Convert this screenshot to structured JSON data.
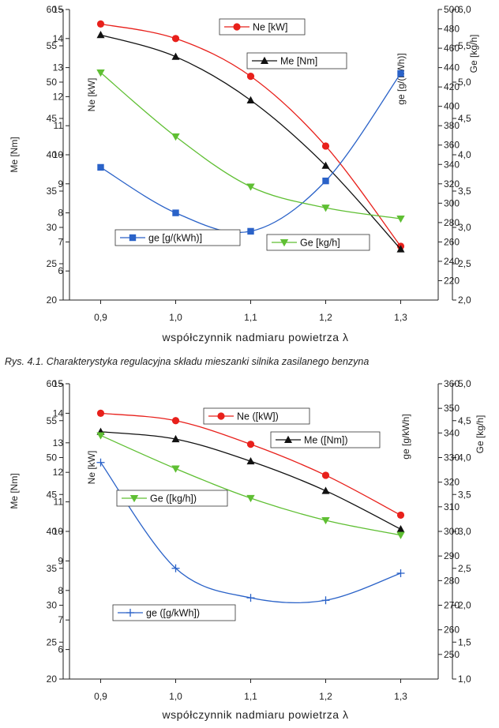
{
  "caption": "Rys. 4.1. Charakterystyka  regulacyjna składu mieszanki silnika zasilanego benzyna",
  "chart_data": [
    {
      "type": "line",
      "id": "top",
      "xlabel": "współczynnik nadmiaru powietrza  λ",
      "x": [
        0.9,
        1.0,
        1.1,
        1.2,
        1.3
      ],
      "x_tick_labels": [
        "0,9",
        "1,0",
        "1,1",
        "1,2",
        "1,3"
      ],
      "xlim": [
        0.85,
        1.35
      ],
      "axes": [
        {
          "key": "me",
          "label": "Me [Nm]",
          "ylim": [
            20,
            60
          ],
          "ticks": [
            20,
            25,
            30,
            35,
            40,
            45,
            50,
            55,
            60
          ],
          "tick_labels": [
            "20",
            "25",
            "30",
            "35",
            "40",
            "45",
            "50",
            "55",
            "60"
          ],
          "side": "left"
        },
        {
          "key": "ne",
          "label": "Ne [kW]",
          "ylim": [
            5,
            15
          ],
          "ticks": [
            6,
            7,
            8,
            9,
            10,
            11,
            12,
            13,
            14,
            15
          ],
          "tick_labels": [
            "6",
            "7",
            "8",
            "9",
            "10",
            "11",
            "12",
            "13",
            "14",
            "15"
          ],
          "side": "left-inner"
        },
        {
          "key": "ge",
          "label": "ge [g/(kWh)]",
          "ylim": [
            200,
            500
          ],
          "ticks": [
            220,
            240,
            260,
            280,
            300,
            320,
            340,
            360,
            380,
            400,
            420,
            440,
            460,
            480,
            500
          ],
          "tick_labels": [
            "220",
            "240",
            "260",
            "280",
            "300",
            "320",
            "340",
            "360",
            "380",
            "400",
            "420",
            "440",
            "460",
            "480",
            "500"
          ],
          "side": "right"
        },
        {
          "key": "Ge",
          "label": "Ge [kg/h]",
          "ylim": [
            2.0,
            6.0
          ],
          "ticks": [
            2.0,
            2.5,
            3.0,
            3.5,
            4.0,
            4.5,
            5.0,
            5.5,
            6.0
          ],
          "tick_labels": [
            "2,0",
            "2,5",
            "3,0",
            "3,5",
            "4,0",
            "4,5",
            "5,0",
            "5,5",
            "6,0"
          ],
          "side": "right-outer"
        }
      ],
      "series": [
        {
          "name": "Ne [kW]",
          "axis": "ne",
          "color": "#e8201b",
          "marker": "circle",
          "values": [
            14.5,
            14.0,
            12.7,
            10.3,
            6.85
          ]
        },
        {
          "name": "Me [Nm]",
          "axis": "me",
          "color": "#111111",
          "marker": "triangle-up",
          "values": [
            56.5,
            53.5,
            47.5,
            38.5,
            27.0
          ]
        },
        {
          "name": "ge [g/(kWh)]",
          "axis": "ge",
          "color": "#2a62c8",
          "marker": "square",
          "values": [
            337,
            290,
            271,
            323,
            434
          ]
        },
        {
          "name": "Ge [kg/h]",
          "axis": "Ge",
          "color": "#5fbf33",
          "marker": "triangle-down",
          "values": [
            5.13,
            4.25,
            3.56,
            3.27,
            3.12
          ]
        }
      ],
      "legend": [
        {
          "label": "Ne [kW]",
          "series": 0
        },
        {
          "label": "Me [Nm]",
          "series": 1
        },
        {
          "label": "ge [g/(kWh)]",
          "series": 2
        },
        {
          "label": "Ge [kg/h]",
          "series": 3
        }
      ]
    },
    {
      "type": "line",
      "id": "bottom",
      "xlabel": "współczynnik nadmiaru powietrza  λ",
      "x": [
        0.9,
        1.0,
        1.1,
        1.2,
        1.3
      ],
      "x_tick_labels": [
        "0,9",
        "1,0",
        "1,1",
        "1,2",
        "1,3"
      ],
      "xlim": [
        0.85,
        1.35
      ],
      "axes": [
        {
          "key": "me",
          "label": "Me [Nm]",
          "ylim": [
            20,
            60
          ],
          "ticks": [
            20,
            25,
            30,
            35,
            40,
            45,
            50,
            55,
            60
          ],
          "tick_labels": [
            "20",
            "25",
            "30",
            "35",
            "40",
            "45",
            "50",
            "55",
            "60"
          ],
          "side": "left"
        },
        {
          "key": "ne",
          "label": "Ne [kW]",
          "ylim": [
            5,
            15
          ],
          "ticks": [
            6,
            7,
            8,
            9,
            10,
            11,
            12,
            13,
            14,
            15
          ],
          "tick_labels": [
            "6",
            "7",
            "8",
            "9",
            "10",
            "11",
            "12",
            "13",
            "14",
            "15"
          ],
          "side": "left-inner"
        },
        {
          "key": "ge",
          "label": "ge [g/kWh]",
          "ylim": [
            240,
            360
          ],
          "ticks": [
            250,
            260,
            270,
            280,
            290,
            300,
            310,
            320,
            330,
            340,
            350,
            360
          ],
          "tick_labels": [
            "250",
            "260",
            "270",
            "280",
            "290",
            "300",
            "310",
            "320",
            "330",
            "340",
            "350",
            "360"
          ],
          "side": "right"
        },
        {
          "key": "Ge",
          "label": "Ge [kg/h]",
          "ylim": [
            1.0,
            5.0
          ],
          "ticks": [
            1.0,
            1.5,
            2.0,
            2.5,
            3.0,
            3.5,
            4.0,
            4.5,
            5.0
          ],
          "tick_labels": [
            "1,0",
            "1,5",
            "2,0",
            "2,5",
            "3,0",
            "3,5",
            "4,0",
            "4,5",
            "5,0"
          ],
          "side": "right-outer"
        }
      ],
      "series": [
        {
          "name": "Ne ([kW])",
          "axis": "ne",
          "color": "#e8201b",
          "marker": "circle",
          "values": [
            14.0,
            13.75,
            12.95,
            11.9,
            10.55
          ]
        },
        {
          "name": "Me ([Nm])",
          "axis": "me",
          "color": "#111111",
          "marker": "triangle-up",
          "values": [
            53.5,
            52.5,
            49.5,
            45.5,
            40.3
          ]
        },
        {
          "name": "Ge ([kg/h])",
          "axis": "Ge",
          "color": "#5fbf33",
          "marker": "triangle-down",
          "values": [
            4.3,
            3.85,
            3.45,
            3.15,
            2.95
          ]
        },
        {
          "name": "ge ([g/kWh])",
          "axis": "ge",
          "color": "#2a62c8",
          "marker": "plus",
          "values": [
            328,
            285,
            273,
            272,
            283
          ]
        }
      ],
      "legend": [
        {
          "label": "Ne ([kW])",
          "series": 0
        },
        {
          "label": "Me ([Nm])",
          "series": 1
        },
        {
          "label": "Ge ([kg/h])",
          "series": 2
        },
        {
          "label": "ge ([g/kWh])",
          "series": 3
        }
      ]
    }
  ]
}
